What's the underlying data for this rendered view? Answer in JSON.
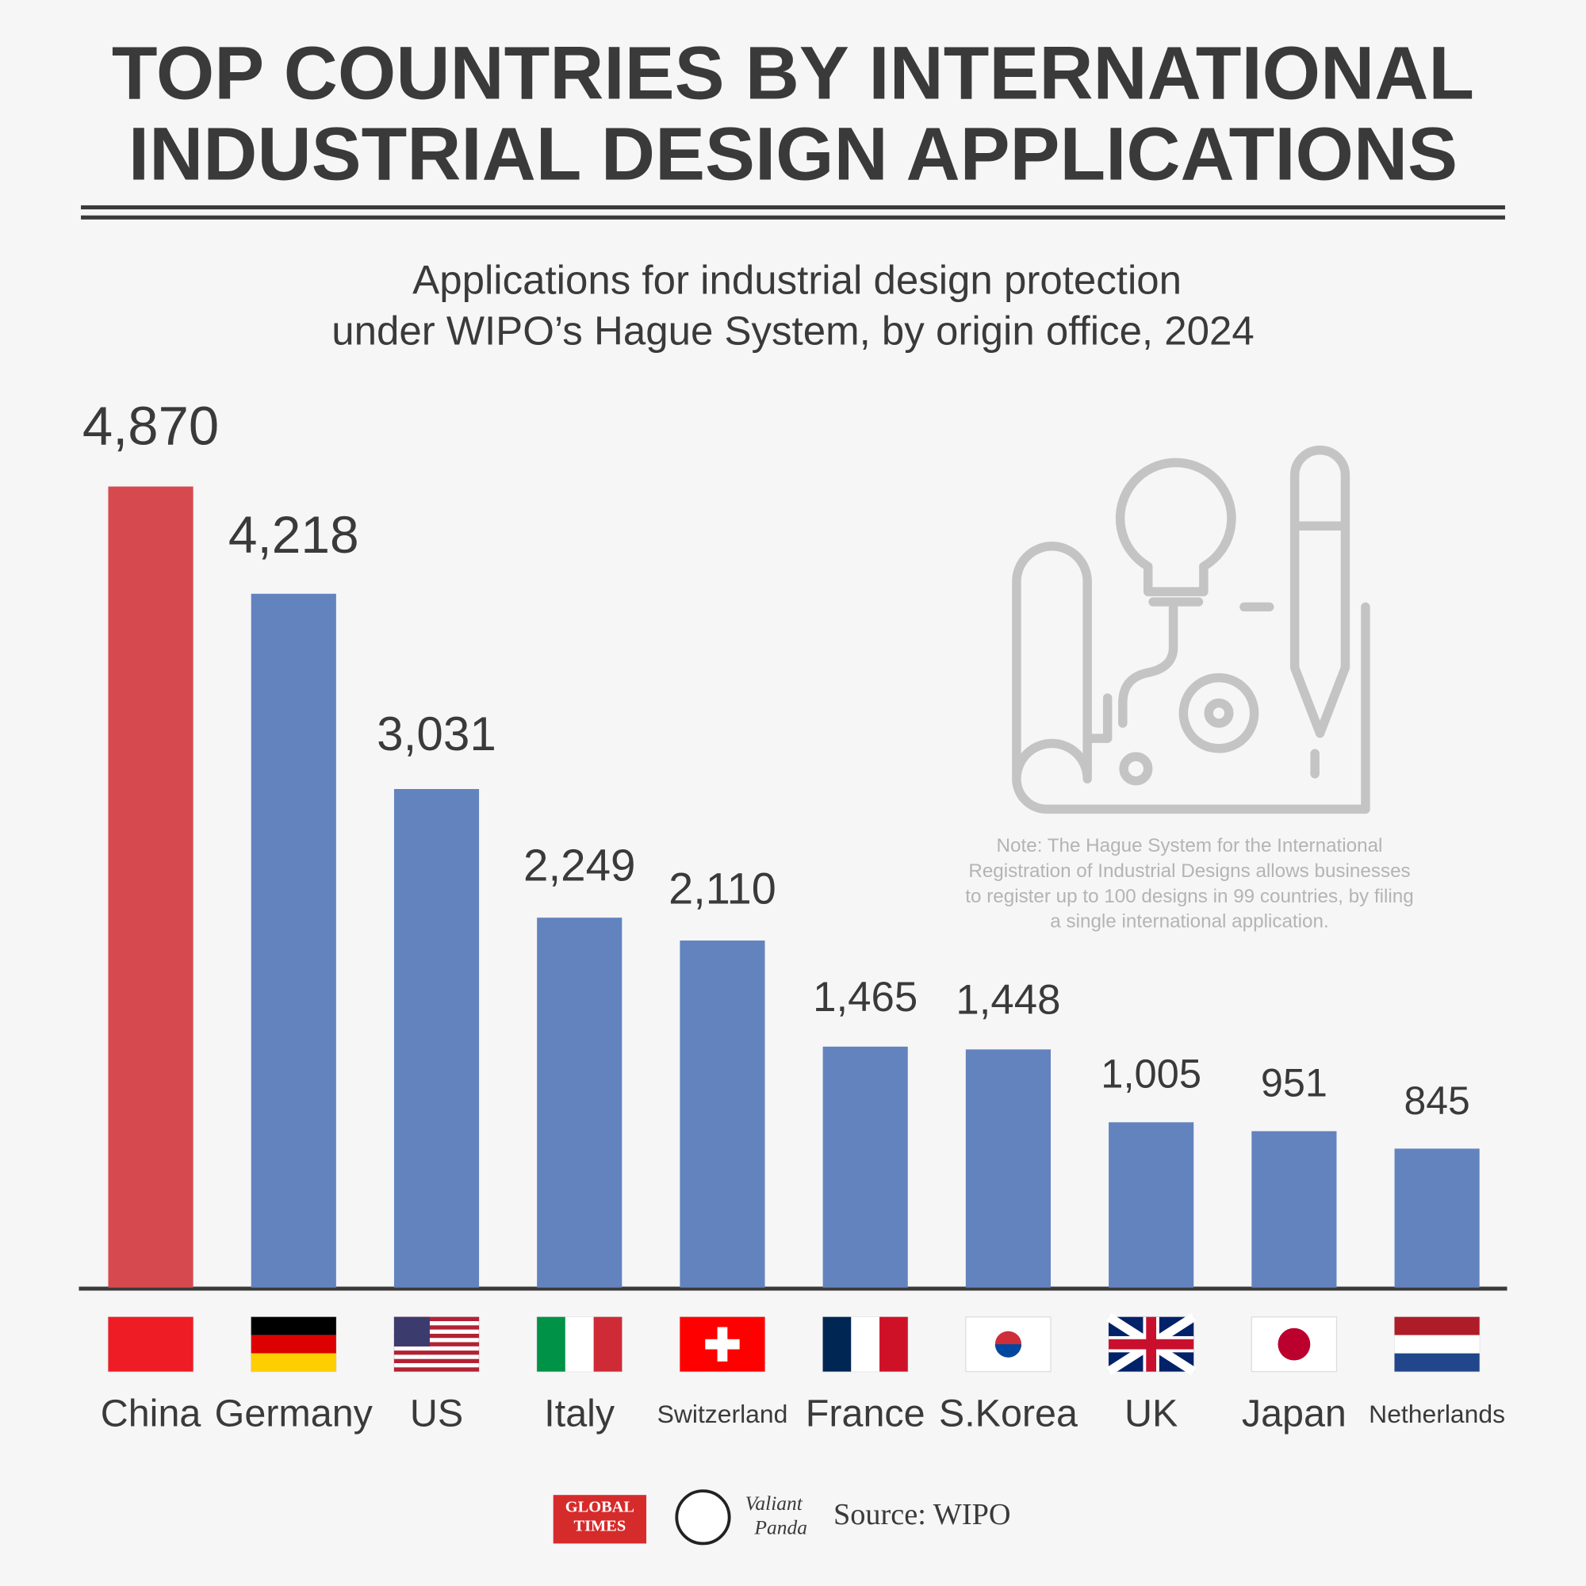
{
  "chart_data": {
    "type": "bar",
    "title": [
      "TOP COUNTRIES BY INTERNATIONAL",
      "INDUSTRIAL DESIGN APPLICATIONS"
    ],
    "subtitle": [
      "Applications for industrial design protection",
      "under WIPO’s Hague System, by origin office, 2024"
    ],
    "categories": [
      "China",
      "Germany",
      "US",
      "Italy",
      "Switzerland",
      "France",
      "S.Korea",
      "UK",
      "Japan",
      "Netherlands"
    ],
    "values": [
      4870,
      4218,
      3031,
      2249,
      2110,
      1465,
      1448,
      1005,
      951,
      845
    ],
    "value_labels": [
      "4,870",
      "4,218",
      "3,031",
      "2,249",
      "2,110",
      "1,465",
      "1,448",
      "1,005",
      "951",
      "845"
    ],
    "colors": [
      "#d64a4f",
      "#6383bf",
      "#6383bf",
      "#6383bf",
      "#6383bf",
      "#6383bf",
      "#6383bf",
      "#6383bf",
      "#6383bf",
      "#6383bf"
    ],
    "note": [
      "Note: The Hague System for the International",
      "Registration of Industrial Designs allows businesses",
      "to register up to 100 designs in 99 countries, by filing",
      "a single international application."
    ],
    "logos": [
      "GLOBAL",
      "TIMES",
      "Valiant",
      "Panda"
    ],
    "source": "Source: WIPO"
  }
}
